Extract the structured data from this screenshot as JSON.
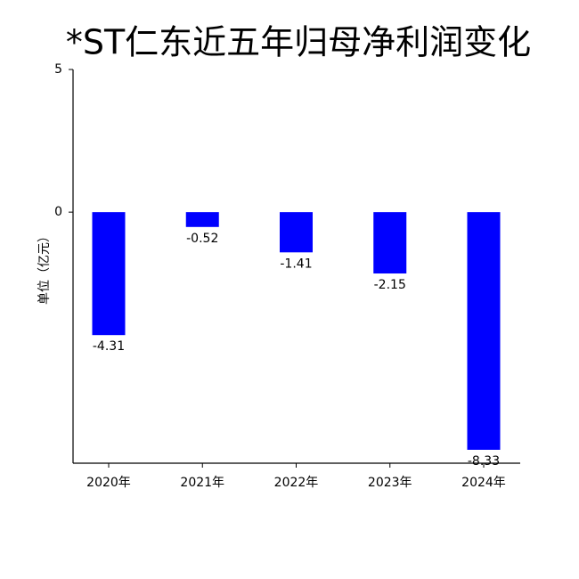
{
  "chart_data": {
    "type": "bar",
    "title": "*ST仁东近五年归母净利润变化",
    "y_label": "单位（亿元）",
    "categories": [
      "2020年",
      "2021年",
      "2022年",
      "2023年",
      "2024年"
    ],
    "values": [
      -4.31,
      -0.52,
      -1.41,
      -2.15,
      -8.33
    ],
    "color": "#0000ff",
    "ylim": [
      -8.8,
      5
    ],
    "yticks": [
      5,
      0
    ],
    "grid": false
  }
}
